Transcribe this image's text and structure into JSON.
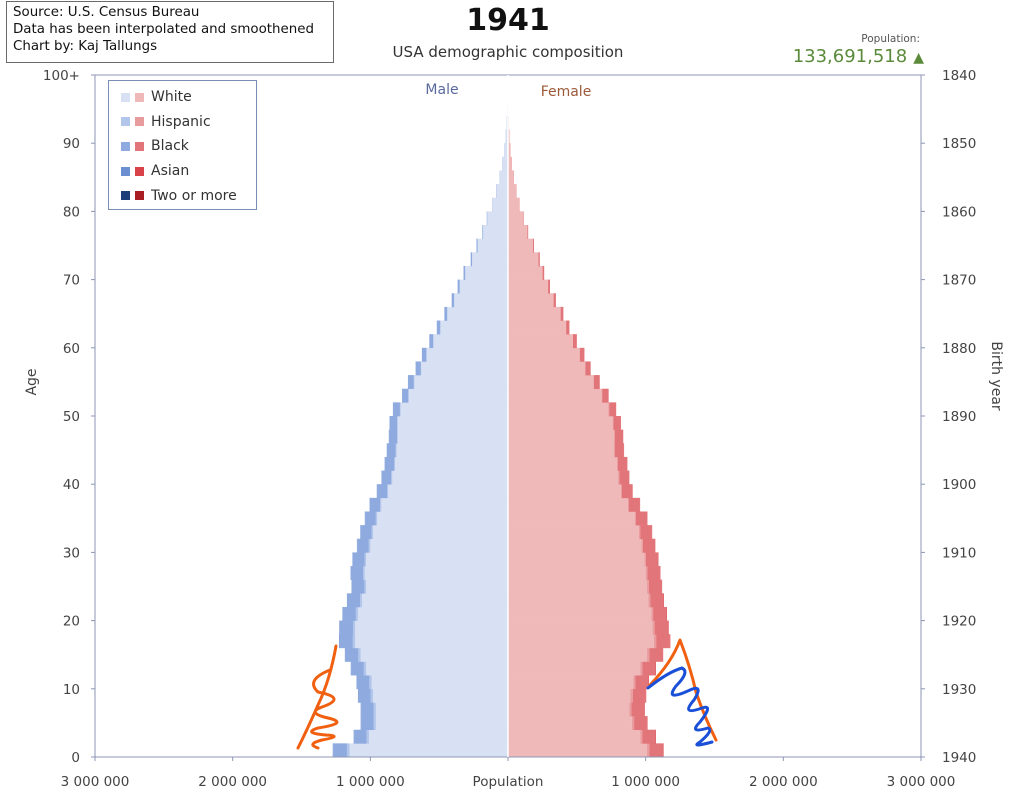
{
  "source_box": {
    "line1": "Source: U.S. Census Bureau",
    "line2": "Data has been interpolated and smoothened",
    "line3": "Chart by: Kaj Tallungs"
  },
  "header": {
    "year": "1941",
    "subtitle": "USA demographic composition",
    "population_label": "Population:",
    "population_value": "133,691,518",
    "population_trend": "▲"
  },
  "legend": [
    {
      "label": "White",
      "male_color": "#d8e1f3",
      "female_color": "#efb8b9"
    },
    {
      "label": "Hispanic",
      "male_color": "#b2c5ea",
      "female_color": "#e99c9e"
    },
    {
      "label": "Black",
      "male_color": "#8eaade",
      "female_color": "#e27579"
    },
    {
      "label": "Asian",
      "male_color": "#6b8fd1",
      "female_color": "#d94248"
    },
    {
      "label": "Two or more",
      "male_color": "#1f3f7a",
      "female_color": "#a81e23"
    }
  ],
  "chart_data": {
    "type": "bar",
    "orientation": "horizontal-pyramid",
    "title": "1941",
    "subtitle": "USA demographic composition",
    "xlabel": "Population",
    "ylabel": "Age",
    "y2label": "Birth year",
    "xlim": [
      -3000000,
      3000000
    ],
    "ylim": [
      0,
      100
    ],
    "x_tick_values": [
      -3000000,
      -2000000,
      -1000000,
      0,
      1000000,
      2000000,
      3000000
    ],
    "x_tick_labels": [
      "3 000 000",
      "2 000 000",
      "1 000 000",
      "Population",
      "1 000 000",
      "2 000 000",
      "3 000 000"
    ],
    "y_tick_values": [
      0,
      10,
      20,
      30,
      40,
      50,
      60,
      70,
      80,
      90,
      100
    ],
    "y_tick_labels": [
      "0",
      "10",
      "20",
      "30",
      "40",
      "50",
      "60",
      "70",
      "80",
      "90",
      "100+"
    ],
    "y2_tick_values": [
      0,
      10,
      20,
      30,
      40,
      50,
      60,
      70,
      80,
      90,
      100
    ],
    "y2_tick_labels": [
      "1940",
      "1930",
      "1920",
      "1910",
      "1900",
      "1890",
      "1880",
      "1870",
      "1860",
      "1850",
      "1840"
    ],
    "series_labels": {
      "male": "Male",
      "female": "Female"
    },
    "grid": false,
    "legend_position": "top-left",
    "ages": [
      0,
      2,
      4,
      6,
      8,
      10,
      12,
      14,
      16,
      18,
      20,
      22,
      24,
      26,
      28,
      30,
      32,
      34,
      36,
      38,
      40,
      42,
      44,
      46,
      48,
      50,
      52,
      54,
      56,
      58,
      60,
      62,
      64,
      66,
      68,
      70,
      72,
      74,
      76,
      78,
      80,
      82,
      84,
      86,
      88,
      90,
      92,
      94,
      96,
      98,
      100
    ],
    "male_white": [
      1150000,
      1010000,
      960000,
      960000,
      980000,
      990000,
      1030000,
      1070000,
      1110000,
      1110000,
      1090000,
      1060000,
      1030000,
      1040000,
      1030000,
      1000000,
      980000,
      950000,
      920000,
      870000,
      840000,
      820000,
      810000,
      800000,
      800000,
      780000,
      720000,
      680000,
      630000,
      590000,
      540000,
      490000,
      440000,
      390000,
      350000,
      310000,
      260000,
      220000,
      180000,
      150000,
      110000,
      85000,
      60000,
      42000,
      28000,
      18000,
      11000,
      6000,
      3000,
      1500,
      500
    ],
    "male_hispanic": [
      20000,
      18000,
      17000,
      17000,
      17000,
      17000,
      17000,
      17000,
      17000,
      16000,
      15000,
      14000,
      13000,
      13000,
      12000,
      11000,
      11000,
      10000,
      9000,
      9000,
      8000,
      8000,
      7000,
      6000,
      6000,
      5000,
      4000,
      4000,
      3000,
      3000,
      3000,
      2000,
      2000,
      2000,
      1000,
      1000,
      1000,
      1000,
      500,
      500,
      300,
      200,
      100,
      100,
      50,
      50,
      20,
      10,
      0,
      0,
      0
    ],
    "male_black": [
      100000,
      90000,
      90000,
      90000,
      90000,
      90000,
      92000,
      95000,
      97000,
      97000,
      95000,
      93000,
      90000,
      88000,
      86000,
      84000,
      80000,
      78000,
      75000,
      72000,
      70000,
      67000,
      62000,
      58000,
      54000,
      50000,
      45000,
      42000,
      38000,
      32000,
      28000,
      25000,
      20000,
      17000,
      15000,
      12000,
      10000,
      8000,
      6000,
      4000,
      3000,
      2000,
      1500,
      1000,
      600,
      400,
      200,
      100,
      50,
      20,
      0
    ],
    "male_asian": [
      3000,
      3000,
      3000,
      3000,
      3000,
      3000,
      3000,
      3000,
      3000,
      3000,
      3000,
      3000,
      3000,
      2500,
      2500,
      2500,
      2000,
      2000,
      2000,
      2000,
      1500,
      1500,
      1500,
      1500,
      1000,
      1000,
      1000,
      800,
      600,
      500,
      400,
      300,
      200,
      200,
      100,
      100,
      100,
      50,
      0,
      0,
      0,
      0,
      0,
      0,
      0,
      0,
      0,
      0,
      0,
      0,
      0
    ],
    "female_white": [
      1010000,
      960000,
      900000,
      880000,
      890000,
      910000,
      960000,
      1010000,
      1060000,
      1050000,
      1040000,
      1020000,
      1010000,
      1000000,
      990000,
      970000,
      950000,
      920000,
      870000,
      820000,
      800000,
      790000,
      770000,
      770000,
      760000,
      730000,
      680000,
      620000,
      560000,
      520000,
      470000,
      420000,
      380000,
      330000,
      290000,
      250000,
      220000,
      180000,
      140000,
      110000,
      80000,
      60000,
      42000,
      28000,
      18000,
      11000,
      6000,
      3000,
      1500,
      600,
      200
    ],
    "female_hispanic": [
      18000,
      17000,
      16000,
      16000,
      16000,
      16000,
      16000,
      16000,
      16000,
      15000,
      14000,
      13000,
      12000,
      12000,
      11000,
      10000,
      10000,
      9000,
      9000,
      8000,
      8000,
      7000,
      7000,
      6000,
      5000,
      5000,
      4000,
      4000,
      3000,
      3000,
      2000,
      2000,
      2000,
      1000,
      1000,
      1000,
      1000,
      500,
      500,
      500,
      300,
      200,
      100,
      100,
      50,
      50,
      20,
      10,
      0,
      0,
      0
    ],
    "female_black": [
      100000,
      95000,
      95000,
      95000,
      95000,
      95000,
      96000,
      98000,
      100000,
      100000,
      98000,
      97000,
      95000,
      93000,
      90000,
      88000,
      85000,
      82000,
      79000,
      76000,
      72000,
      69000,
      65000,
      60000,
      55000,
      50000,
      46000,
      42000,
      37000,
      32000,
      28000,
      24000,
      20000,
      17000,
      14000,
      12000,
      10000,
      8000,
      6000,
      4000,
      3000,
      2000,
      1500,
      1000,
      600,
      400,
      200,
      100,
      50,
      20,
      0
    ],
    "female_asian": [
      3000,
      3000,
      3000,
      3000,
      3000,
      3000,
      3000,
      3000,
      3000,
      3000,
      3000,
      3000,
      2500,
      2500,
      2500,
      2000,
      2000,
      2000,
      1500,
      1500,
      1500,
      1500,
      1000,
      1000,
      1000,
      800,
      800,
      600,
      500,
      400,
      300,
      300,
      200,
      100,
      100,
      100,
      50,
      0,
      0,
      0,
      0,
      0,
      0,
      0,
      0,
      0,
      0,
      0,
      0,
      0,
      0
    ]
  },
  "annotations": [
    {
      "name": "orange-scribble-left",
      "color": "#f06010"
    },
    {
      "name": "orange-scribble-right",
      "color": "#f06010"
    },
    {
      "name": "blue-scribble-right",
      "color": "#1a4fd8"
    }
  ]
}
